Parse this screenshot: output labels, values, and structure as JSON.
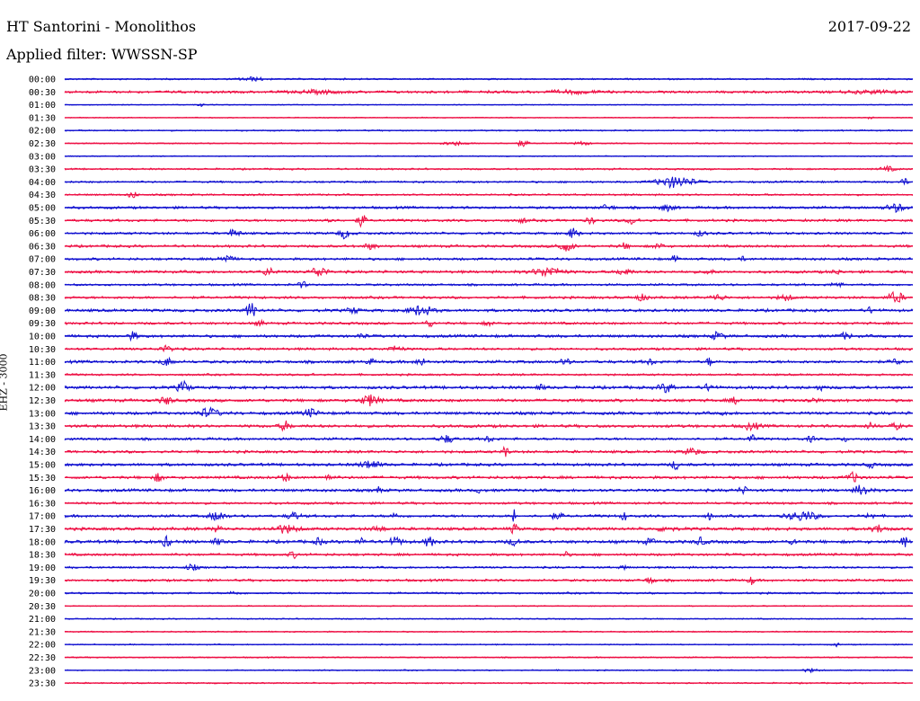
{
  "header": {
    "station": "HT Santorini - Monolithos",
    "date": "2017-09-22",
    "filter": "Applied filter: WWSSN-SP",
    "channel": "EHZ - 3000"
  },
  "colors": {
    "blue": "#1010d0",
    "red": "#ee1045",
    "text": "#000000"
  },
  "chart_data": {
    "type": "line",
    "title": "HT Santorini - Monolithos",
    "ylabel": "EHZ - 3000",
    "grid": false,
    "legend": "none",
    "row_labels": [
      "00:00",
      "00:30",
      "01:00",
      "01:30",
      "02:00",
      "02:30",
      "03:00",
      "03:30",
      "04:00",
      "04:30",
      "05:00",
      "05:30",
      "06:00",
      "06:30",
      "07:00",
      "07:30",
      "08:00",
      "08:30",
      "09:00",
      "09:30",
      "10:00",
      "10:30",
      "11:00",
      "11:30",
      "12:00",
      "12:30",
      "13:00",
      "13:30",
      "14:00",
      "14:30",
      "15:00",
      "15:30",
      "16:00",
      "16:30",
      "17:00",
      "17:30",
      "18:00",
      "18:30",
      "19:00",
      "19:30",
      "20:00",
      "20:30",
      "21:00",
      "21:30",
      "22:00",
      "22:30",
      "23:00",
      "23:30"
    ],
    "row_colors": [
      "blue",
      "red",
      "blue",
      "red",
      "blue",
      "red",
      "blue",
      "red",
      "blue",
      "red",
      "blue",
      "red",
      "blue",
      "red",
      "blue",
      "red",
      "blue",
      "red",
      "blue",
      "red",
      "blue",
      "red",
      "blue",
      "red",
      "blue",
      "red",
      "blue",
      "red",
      "blue",
      "red",
      "blue",
      "red",
      "blue",
      "red",
      "blue",
      "red",
      "blue",
      "red",
      "blue",
      "red",
      "blue",
      "red",
      "blue",
      "red",
      "blue",
      "red",
      "blue",
      "red"
    ],
    "row_noise": [
      1.0,
      1.6,
      0.6,
      0.6,
      0.9,
      0.8,
      0.7,
      1.1,
      1.2,
      1.2,
      1.6,
      1.6,
      1.5,
      1.6,
      1.6,
      1.7,
      1.4,
      1.6,
      1.8,
      1.6,
      1.8,
      1.6,
      1.8,
      1.3,
      1.9,
      1.9,
      1.9,
      1.9,
      1.6,
      1.7,
      1.8,
      1.8,
      1.8,
      1.5,
      1.7,
      1.9,
      2.0,
      1.6,
      1.3,
      1.5,
      1.2,
      0.7,
      0.8,
      0.8,
      0.8,
      0.8,
      0.8,
      0.9
    ],
    "events": [
      [
        [
          0.22,
          2,
          0.01
        ]
      ],
      [
        [
          0.3,
          1.5,
          0.02
        ],
        [
          0.6,
          1.5,
          0.02
        ],
        [
          0.95,
          1.5,
          0.02
        ]
      ],
      [
        [
          0.16,
          1.5,
          0.003
        ]
      ],
      [
        [
          0.95,
          1.5,
          0.003
        ]
      ],
      [],
      [
        [
          0.46,
          2,
          0.01
        ],
        [
          0.54,
          4,
          0.004
        ],
        [
          0.61,
          2,
          0.006
        ]
      ],
      [],
      [
        [
          0.97,
          2.5,
          0.006
        ]
      ],
      [
        [
          0.72,
          6,
          0.015
        ],
        [
          0.99,
          3,
          0.004
        ]
      ],
      [
        [
          0.08,
          5,
          0.003
        ]
      ],
      [
        [
          0.64,
          3,
          0.005
        ],
        [
          0.71,
          3,
          0.006
        ],
        [
          0.98,
          4,
          0.008
        ]
      ],
      [
        [
          0.31,
          3,
          0.004
        ],
        [
          0.35,
          8,
          0.003
        ],
        [
          0.54,
          3,
          0.003
        ],
        [
          0.62,
          4,
          0.003
        ],
        [
          0.67,
          4,
          0.005
        ]
      ],
      [
        [
          0.2,
          4,
          0.005
        ],
        [
          0.33,
          5,
          0.005
        ],
        [
          0.6,
          6,
          0.004
        ],
        [
          0.75,
          3,
          0.004
        ]
      ],
      [
        [
          0.36,
          3,
          0.005
        ],
        [
          0.59,
          5,
          0.007
        ],
        [
          0.66,
          3,
          0.004
        ],
        [
          0.7,
          3,
          0.004
        ]
      ],
      [
        [
          0.19,
          4,
          0.006
        ],
        [
          0.72,
          3,
          0.003
        ],
        [
          0.8,
          2,
          0.003
        ]
      ],
      [
        [
          0.24,
          4,
          0.005
        ],
        [
          0.3,
          6,
          0.006
        ],
        [
          0.57,
          5,
          0.012
        ],
        [
          0.66,
          4,
          0.005
        ],
        [
          0.76,
          4,
          0.003
        ],
        [
          0.91,
          3,
          0.003
        ]
      ],
      [
        [
          0.28,
          3,
          0.004
        ],
        [
          0.91,
          3,
          0.004
        ]
      ],
      [
        [
          0.68,
          3,
          0.006
        ],
        [
          0.77,
          3,
          0.006
        ],
        [
          0.85,
          3,
          0.006
        ],
        [
          0.98,
          6,
          0.006
        ]
      ],
      [
        [
          0.22,
          8,
          0.004
        ],
        [
          0.34,
          3,
          0.005
        ],
        [
          0.42,
          5,
          0.01
        ],
        [
          0.95,
          3,
          0.003
        ]
      ],
      [
        [
          0.23,
          3,
          0.003
        ],
        [
          0.43,
          3,
          0.004
        ],
        [
          0.5,
          2,
          0.004
        ]
      ],
      [
        [
          0.08,
          4,
          0.004
        ],
        [
          0.35,
          3,
          0.003
        ],
        [
          0.77,
          4,
          0.005
        ],
        [
          0.92,
          3,
          0.005
        ]
      ],
      [
        [
          0.12,
          3,
          0.006
        ],
        [
          0.39,
          3,
          0.006
        ]
      ],
      [
        [
          0.12,
          4,
          0.005
        ],
        [
          0.36,
          3,
          0.003
        ],
        [
          0.42,
          4,
          0.004
        ],
        [
          0.59,
          5,
          0.003
        ],
        [
          0.69,
          3,
          0.004
        ],
        [
          0.76,
          5,
          0.002
        ],
        [
          0.95,
          9,
          0.001
        ],
        [
          0.98,
          3,
          0.004
        ]
      ],
      [
        [
          0.29,
          2,
          0.003
        ]
      ],
      [
        [
          0.14,
          6,
          0.005
        ],
        [
          0.56,
          3,
          0.004
        ],
        [
          0.71,
          5,
          0.006
        ],
        [
          0.76,
          4,
          0.004
        ],
        [
          0.89,
          3,
          0.003
        ]
      ],
      [
        [
          0.12,
          4,
          0.005
        ],
        [
          0.36,
          6,
          0.007
        ],
        [
          0.79,
          3,
          0.004
        ],
        [
          0.88,
          3,
          0.004
        ]
      ],
      [
        [
          0.17,
          5,
          0.008
        ],
        [
          0.29,
          4,
          0.006
        ],
        [
          0.78,
          2,
          0.003
        ]
      ],
      [
        [
          0.26,
          5,
          0.004
        ],
        [
          0.81,
          4,
          0.006
        ],
        [
          0.95,
          3,
          0.004
        ],
        [
          0.98,
          3,
          0.004
        ]
      ],
      [
        [
          0.45,
          4,
          0.006
        ],
        [
          0.5,
          3,
          0.004
        ],
        [
          0.81,
          4,
          0.003
        ],
        [
          0.88,
          3,
          0.003
        ],
        [
          0.92,
          2,
          0.003
        ]
      ],
      [
        [
          0.52,
          8,
          0.002
        ],
        [
          0.74,
          4,
          0.006
        ]
      ],
      [
        [
          0.36,
          5,
          0.007
        ],
        [
          0.72,
          5,
          0.003
        ],
        [
          0.95,
          3,
          0.003
        ]
      ],
      [
        [
          0.11,
          4,
          0.004
        ],
        [
          0.26,
          4,
          0.004
        ],
        [
          0.31,
          4,
          0.003
        ],
        [
          0.93,
          5,
          0.005
        ]
      ],
      [
        [
          0.37,
          3,
          0.003
        ],
        [
          0.49,
          2,
          0.004
        ],
        [
          0.8,
          3,
          0.005
        ],
        [
          0.94,
          6,
          0.006
        ]
      ],
      [],
      [
        [
          0.18,
          5,
          0.006
        ],
        [
          0.27,
          4,
          0.005
        ],
        [
          0.39,
          3,
          0.003
        ],
        [
          0.53,
          10,
          0.001
        ],
        [
          0.58,
          3,
          0.005
        ],
        [
          0.66,
          4,
          0.003
        ],
        [
          0.76,
          4,
          0.002
        ],
        [
          0.87,
          5,
          0.012
        ],
        [
          0.95,
          4,
          0.003
        ]
      ],
      [
        [
          0.18,
          3,
          0.004
        ],
        [
          0.26,
          4,
          0.01
        ],
        [
          0.37,
          3,
          0.005
        ],
        [
          0.53,
          5,
          0.003
        ],
        [
          0.71,
          3,
          0.006
        ],
        [
          0.96,
          4,
          0.006
        ]
      ],
      [
        [
          0.12,
          5,
          0.004
        ],
        [
          0.18,
          3,
          0.004
        ],
        [
          0.3,
          4,
          0.003
        ],
        [
          0.35,
          3,
          0.004
        ],
        [
          0.39,
          4,
          0.006
        ],
        [
          0.43,
          5,
          0.004
        ],
        [
          0.53,
          3,
          0.005
        ],
        [
          0.69,
          3,
          0.004
        ],
        [
          0.75,
          4,
          0.004
        ],
        [
          0.86,
          3,
          0.003
        ],
        [
          0.99,
          5,
          0.003
        ]
      ],
      [
        [
          0.27,
          3,
          0.004
        ],
        [
          0.59,
          3,
          0.003
        ]
      ],
      [
        [
          0.15,
          3,
          0.005
        ],
        [
          0.66,
          2,
          0.003
        ]
      ],
      [
        [
          0.69,
          3,
          0.005
        ],
        [
          0.81,
          4,
          0.003
        ]
      ],
      [
        [
          0.2,
          2,
          0.004
        ]
      ],
      [],
      [],
      [],
      [
        [
          0.91,
          2,
          0.002
        ]
      ],
      [],
      [
        [
          0.88,
          2,
          0.006
        ]
      ],
      []
    ]
  }
}
